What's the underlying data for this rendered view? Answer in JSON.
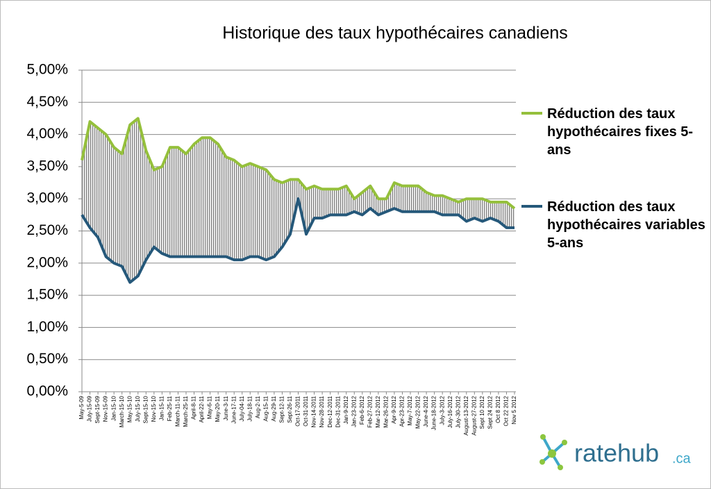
{
  "chart_data": {
    "type": "line",
    "title": "Historique  des taux hypothécaires canadiens",
    "categories": [
      "May-5-09",
      "July-15-09",
      "Sept-15-09",
      "Nov-15-09",
      "Jan-15-10",
      "March-15-10",
      "May-15-10",
      "July-15-10",
      "Sept-15-10",
      "Nov-15-10",
      "Jan-15-11",
      "Feb-25-11",
      "March-11-11",
      "March-25-11",
      "April-8-11",
      "April-22-11",
      "May-6-11",
      "May-20-11",
      "June-3-11",
      "June-17-11",
      "July-04-11",
      "July-18-11",
      "Aug-2-11",
      "Aug-15-11",
      "Aug-29-11",
      "Sept-12-11",
      "Sept-26-11",
      "Oct-17-2011",
      "Oct-31-2011",
      "Nov-14-2011",
      "Nov-28-2011",
      "Dec-12-2011",
      "Dec-31-2011",
      "Jan-9-2012",
      "Jan-23-2012",
      "Feb-6-2012",
      "Feb-27-2012",
      "Mar-12-2012",
      "Mar-26-2012",
      "Apr-9-2012",
      "Apr-23-2012",
      "May-7-2012",
      "May-22-2012",
      "June-4-2012",
      "June-18-2012",
      "July-3-2012",
      "July-16-2012",
      "July-30-2012",
      "August-13-2012",
      "August-27-2012",
      "Sept 10 2012",
      "Sept 24 2012",
      "Oct 8 2012",
      "Oct 22 2012",
      "Nov 5 2012"
    ],
    "series": [
      {
        "name": "Réduction des taux hypothécaires fixes 5-ans",
        "color": "#95c03c",
        "values": [
          3.6,
          4.2,
          4.1,
          4.0,
          3.8,
          3.7,
          4.15,
          4.25,
          3.75,
          3.45,
          3.5,
          3.8,
          3.8,
          3.7,
          3.85,
          3.95,
          3.95,
          3.85,
          3.65,
          3.6,
          3.5,
          3.55,
          3.5,
          3.45,
          3.3,
          3.25,
          3.3,
          3.3,
          3.15,
          3.2,
          3.15,
          3.15,
          3.15,
          3.2,
          3.0,
          3.1,
          3.2,
          3.0,
          3.0,
          3.25,
          3.2,
          3.2,
          3.2,
          3.1,
          3.05,
          3.05,
          3.0,
          2.95,
          3.0,
          3.0,
          3.0,
          2.95,
          2.95,
          2.95,
          2.85
        ]
      },
      {
        "name": "Réduction des taux hypothécaires variables 5-ans",
        "color": "#25587a",
        "values": [
          2.75,
          2.55,
          2.4,
          2.1,
          2.0,
          1.95,
          1.7,
          1.8,
          2.05,
          2.25,
          2.15,
          2.1,
          2.1,
          2.1,
          2.1,
          2.1,
          2.1,
          2.1,
          2.1,
          2.05,
          2.05,
          2.1,
          2.1,
          2.05,
          2.1,
          2.25,
          2.45,
          3.0,
          2.45,
          2.7,
          2.7,
          2.75,
          2.75,
          2.75,
          2.8,
          2.75,
          2.85,
          2.75,
          2.8,
          2.85,
          2.8,
          2.8,
          2.8,
          2.8,
          2.8,
          2.75,
          2.75,
          2.75,
          2.65,
          2.7,
          2.65,
          2.7,
          2.65,
          2.55,
          2.55
        ]
      }
    ],
    "ylim": [
      0,
      5
    ],
    "yticks": [
      {
        "value": 0,
        "label": "0,00%"
      },
      {
        "value": 0.5,
        "label": "0,50%"
      },
      {
        "value": 1,
        "label": "1,00%"
      },
      {
        "value": 1.5,
        "label": "1,50%"
      },
      {
        "value": 2,
        "label": "2,00%"
      },
      {
        "value": 2.5,
        "label": "2,50%"
      },
      {
        "value": 3,
        "label": "3,00%"
      },
      {
        "value": 3.5,
        "label": "3,50%"
      },
      {
        "value": 4,
        "label": "4,00%"
      },
      {
        "value": 4.5,
        "label": "4,50%"
      },
      {
        "value": 5,
        "label": "5,00%"
      }
    ],
    "grid": true,
    "legend": "right"
  },
  "logo": {
    "name": "ratehub",
    "suffix": ".ca"
  }
}
